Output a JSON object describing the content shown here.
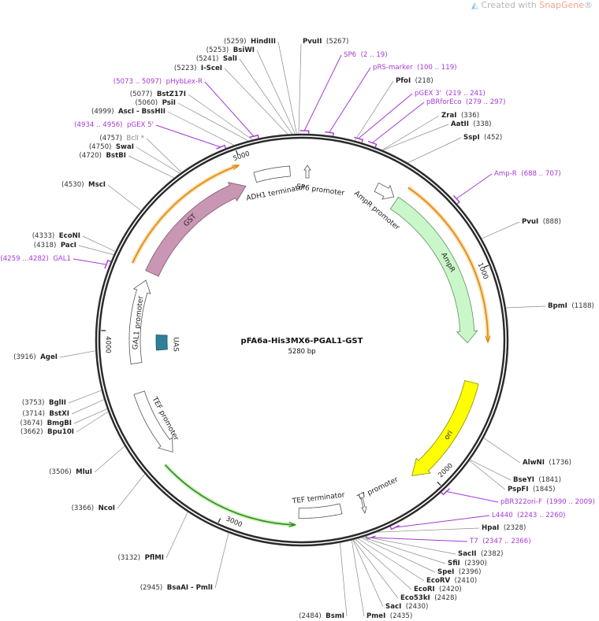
{
  "credit": {
    "prefix": "Created with",
    "brand": "SnapGene",
    "reg": "®"
  },
  "map": {
    "name": "pFA6a-His3MX6-PGAL1-GST",
    "length_text": "5280 bp",
    "length_bp": 5280
  },
  "ticks": [
    "1000",
    "2000",
    "3000",
    "4000",
    "5000"
  ],
  "features": {
    "gst": "GST",
    "ampr": "AmpR",
    "ori": "ori",
    "adh1": "ADH1 terminator",
    "sp6p": "SP6 promoter",
    "amprp": "AmpR promoter",
    "tef_term": "TEF terminator",
    "t7p": "T7 promoter",
    "tef_prom": "TEF promoter",
    "gal1p": "GAL1 promoter",
    "uas": "UAS"
  },
  "colors": {
    "gst": "#c996b3",
    "ampr": "#c9f7c9",
    "ori": "#ffff00",
    "uas": "#2f7f99",
    "primer": "#a43ad6",
    "orange": "#d98a16",
    "green": "#2f8a1e"
  },
  "sites": [
    {
      "name": "HindIII",
      "pos": "(5259)",
      "bp": 5259,
      "kind": "enzyme"
    },
    {
      "name": "BsiWI",
      "pos": "(5253)",
      "bp": 5253,
      "kind": "enzyme"
    },
    {
      "name": "SalI",
      "pos": "(5241)",
      "bp": 5241,
      "kind": "enzyme"
    },
    {
      "name": "I-SceI",
      "pos": "(5223)",
      "bp": 5223,
      "kind": "enzyme"
    },
    {
      "name": "pHybLex-R",
      "pos": "(5073 .. 5097)",
      "bp": 5085,
      "kind": "primer"
    },
    {
      "name": "BstZ17I",
      "pos": "(5077)",
      "bp": 5077,
      "kind": "enzyme"
    },
    {
      "name": "PsiI",
      "pos": "(5060)",
      "bp": 5060,
      "kind": "enzyme"
    },
    {
      "name": "AscI  - BssHII",
      "pos": "(4999)",
      "bp": 4999,
      "kind": "enzyme"
    },
    {
      "name": "pGEX 5'",
      "pos": "(4934 .. 4956)",
      "bp": 4945,
      "kind": "primer"
    },
    {
      "name": "BclI *",
      "pos": "(4757)",
      "bp": 4757,
      "kind": "gray"
    },
    {
      "name": "SwaI",
      "pos": "(4750)",
      "bp": 4750,
      "kind": "enzyme"
    },
    {
      "name": "BstBI",
      "pos": "(4720)",
      "bp": 4720,
      "kind": "enzyme"
    },
    {
      "name": "MscI",
      "pos": "(4530)",
      "bp": 4530,
      "kind": "enzyme"
    },
    {
      "name": "EcoNI",
      "pos": "(4333)",
      "bp": 4333,
      "kind": "enzyme"
    },
    {
      "name": "PacI",
      "pos": "(4318)",
      "bp": 4318,
      "kind": "enzyme"
    },
    {
      "name": "GAL1",
      "pos": "(4259 ...4282)",
      "bp": 4270,
      "kind": "primer"
    },
    {
      "name": "AgeI",
      "pos": "(3916)",
      "bp": 3916,
      "kind": "enzyme"
    },
    {
      "name": "BglII",
      "pos": "(3753)",
      "bp": 3753,
      "kind": "enzyme"
    },
    {
      "name": "BstXI",
      "pos": "(3714)",
      "bp": 3714,
      "kind": "enzyme"
    },
    {
      "name": "BmgBI",
      "pos": "(3674)",
      "bp": 3674,
      "kind": "enzyme"
    },
    {
      "name": "Bpu10I",
      "pos": "(3662)",
      "bp": 3662,
      "kind": "enzyme"
    },
    {
      "name": "MluI",
      "pos": "(3506)",
      "bp": 3506,
      "kind": "enzyme"
    },
    {
      "name": "NcoI",
      "pos": "(3366)",
      "bp": 3366,
      "kind": "enzyme"
    },
    {
      "name": "PflMI",
      "pos": "(3132)",
      "bp": 3132,
      "kind": "enzyme"
    },
    {
      "name": "BsaAI  - PmlI",
      "pos": "(2945)",
      "bp": 2945,
      "kind": "enzyme"
    },
    {
      "name": "BsmI",
      "pos": "(2484)",
      "bp": 2484,
      "kind": "enzyme"
    },
    {
      "name": "PvuII",
      "pos": "(5267)",
      "bp": 5267,
      "kind": "enzyme"
    },
    {
      "name": "SP6",
      "pos": "(2 .. 19)",
      "bp": 10,
      "kind": "primer"
    },
    {
      "name": "pRS-marker",
      "pos": "(100 .. 119)",
      "bp": 110,
      "kind": "primer"
    },
    {
      "name": "PfoI",
      "pos": "(218)",
      "bp": 218,
      "kind": "enzyme"
    },
    {
      "name": "pGEX 3'",
      "pos": "(219 .. 241)",
      "bp": 230,
      "kind": "primer"
    },
    {
      "name": "pBRforEco",
      "pos": "(279 .. 297)",
      "bp": 288,
      "kind": "primer"
    },
    {
      "name": "ZraI",
      "pos": "(336)",
      "bp": 336,
      "kind": "enzyme"
    },
    {
      "name": "AatII",
      "pos": "(338)",
      "bp": 338,
      "kind": "enzyme"
    },
    {
      "name": "SspI",
      "pos": "(452)",
      "bp": 452,
      "kind": "enzyme"
    },
    {
      "name": "Amp-R",
      "pos": "(688 .. 707)",
      "bp": 697,
      "kind": "primer"
    },
    {
      "name": "PvuI",
      "pos": "(888)",
      "bp": 888,
      "kind": "enzyme"
    },
    {
      "name": "BpmI",
      "pos": "(1188)",
      "bp": 1188,
      "kind": "enzyme"
    },
    {
      "name": "AlwNI",
      "pos": "(1736)",
      "bp": 1736,
      "kind": "enzyme"
    },
    {
      "name": "BseYI",
      "pos": "(1841)",
      "bp": 1841,
      "kind": "enzyme"
    },
    {
      "name": "PspFI",
      "pos": "(1845)",
      "bp": 1845,
      "kind": "enzyme"
    },
    {
      "name": "pBR322ori-F",
      "pos": "(1990 .. 2009)",
      "bp": 2000,
      "kind": "primer"
    },
    {
      "name": "L4440",
      "pos": "(2243 .. 2260)",
      "bp": 2251,
      "kind": "primer"
    },
    {
      "name": "HpaI",
      "pos": "(2328)",
      "bp": 2328,
      "kind": "enzyme"
    },
    {
      "name": "T7",
      "pos": "(2347 .. 2366)",
      "bp": 2356,
      "kind": "primer"
    },
    {
      "name": "SacII",
      "pos": "(2382)",
      "bp": 2382,
      "kind": "enzyme"
    },
    {
      "name": "SfiI",
      "pos": "(2390)",
      "bp": 2390,
      "kind": "enzyme"
    },
    {
      "name": "SpeI",
      "pos": "(2396)",
      "bp": 2396,
      "kind": "enzyme"
    },
    {
      "name": "EcoRV",
      "pos": "(2410)",
      "bp": 2410,
      "kind": "enzyme"
    },
    {
      "name": "EcoRI",
      "pos": "(2420)",
      "bp": 2420,
      "kind": "enzyme"
    },
    {
      "name": "Eco53kI",
      "pos": "(2428)",
      "bp": 2428,
      "kind": "enzyme"
    },
    {
      "name": "SacI",
      "pos": "(2430)",
      "bp": 2430,
      "kind": "enzyme"
    },
    {
      "name": "PmeI",
      "pos": "(2435)",
      "bp": 2435,
      "kind": "enzyme"
    }
  ]
}
